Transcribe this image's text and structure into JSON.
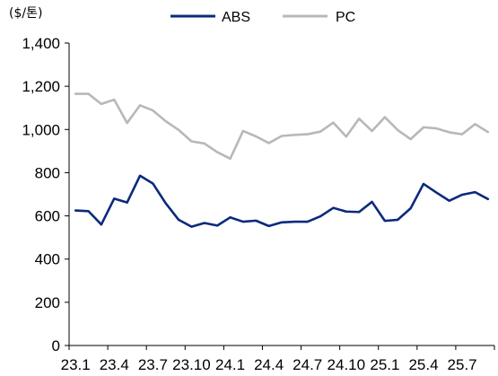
{
  "chart_data": {
    "type": "line",
    "title": "",
    "unit_label": "($/톤)",
    "xlabel": "",
    "ylabel": "",
    "ylim": [
      0,
      1400
    ],
    "yticks": [
      0,
      200,
      400,
      600,
      800,
      1000,
      1200,
      1400
    ],
    "ytick_labels": [
      "0",
      "200",
      "400",
      "600",
      "800",
      "1,000",
      "1,200",
      "1,400"
    ],
    "grid": false,
    "legend_position": "top-center",
    "x": [
      "23.1",
      "23.2",
      "23.3",
      "23.4",
      "23.5",
      "23.6",
      "23.7",
      "23.8",
      "23.9",
      "23.10",
      "23.11",
      "23.12",
      "24.1",
      "24.2",
      "24.3",
      "24.4",
      "24.5",
      "24.6",
      "24.7",
      "24.8",
      "24.9",
      "24.10",
      "24.11",
      "24.12",
      "25.1",
      "25.2",
      "25.3",
      "25.4",
      "25.5",
      "25.6",
      "25.7",
      "25.8",
      "25.9"
    ],
    "xtick_labels": [
      {
        "index": 0,
        "label": "23.1"
      },
      {
        "index": 3,
        "label": "23.4"
      },
      {
        "index": 6,
        "label": "23.7"
      },
      {
        "index": 9,
        "label": "23.10"
      },
      {
        "index": 12,
        "label": "24.1"
      },
      {
        "index": 15,
        "label": "24.4"
      },
      {
        "index": 18,
        "label": "24.7"
      },
      {
        "index": 21,
        "label": "24.10"
      },
      {
        "index": 24,
        "label": "25.1"
      },
      {
        "index": 27,
        "label": "25.4"
      },
      {
        "index": 30,
        "label": "25.7"
      }
    ],
    "series": [
      {
        "name": "ABS",
        "color": "#0b2a7c",
        "values": [
          625,
          622,
          560,
          680,
          662,
          786,
          750,
          658,
          582,
          550,
          567,
          555,
          593,
          573,
          578,
          553,
          570,
          573,
          573,
          598,
          637,
          620,
          618,
          665,
          577,
          582,
          635,
          748,
          708,
          670,
          698,
          710,
          678
        ]
      },
      {
        "name": "PC",
        "color": "#b8b8b8",
        "values": [
          1165,
          1165,
          1118,
          1138,
          1030,
          1112,
          1088,
          1038,
          998,
          945,
          935,
          895,
          865,
          993,
          968,
          937,
          970,
          975,
          978,
          990,
          1032,
          967,
          1050,
          993,
          1057,
          997,
          955,
          1010,
          1005,
          987,
          978,
          1025,
          988
        ]
      }
    ]
  }
}
